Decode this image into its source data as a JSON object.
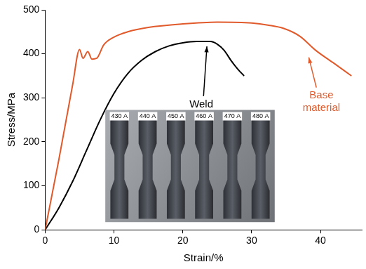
{
  "chart_data": {
    "type": "line",
    "x_label": "Strain/%",
    "y_label": "Stress/MPa",
    "xlim": [
      0,
      46
    ],
    "xticks": [
      0,
      10,
      20,
      30,
      40
    ],
    "ylim": [
      0,
      500
    ],
    "yticks": [
      0,
      100,
      200,
      300,
      400,
      500
    ],
    "grid": false,
    "series": [
      {
        "name": "Base material",
        "color": "#e05a2b",
        "x": [
          0,
          2,
          4,
          5,
          5.5,
          6.2,
          6.8,
          7.5,
          8.5,
          10,
          12,
          15,
          20,
          25,
          30,
          32.5,
          34.6,
          37,
          39.3,
          42,
          44.5
        ],
        "values": [
          0,
          160,
          330,
          410,
          390,
          405,
          388,
          390,
          420,
          438,
          450,
          460,
          468,
          472,
          470,
          465,
          458,
          440,
          408,
          378,
          350
        ]
      },
      {
        "name": "Weld",
        "color": "#000000",
        "x": [
          0,
          2,
          4,
          6,
          8,
          10,
          12,
          14,
          16,
          18,
          20,
          22,
          24,
          25,
          26,
          27,
          28,
          28.9
        ],
        "values": [
          0,
          50,
          110,
          180,
          250,
          310,
          355,
          385,
          405,
          418,
          425,
          428,
          428,
          422,
          408,
          385,
          365,
          350
        ]
      }
    ],
    "annotations": [
      {
        "text": "Weld",
        "x": 23.5,
        "y": 425,
        "color": "#000000"
      },
      {
        "text": "Base material",
        "x": 38.3,
        "y": 400,
        "color": "#e05a2b"
      }
    ],
    "inset": {
      "labels": [
        "430 A",
        "440 A",
        "450 A",
        "460 A",
        "470 A",
        "480 A"
      ]
    }
  }
}
